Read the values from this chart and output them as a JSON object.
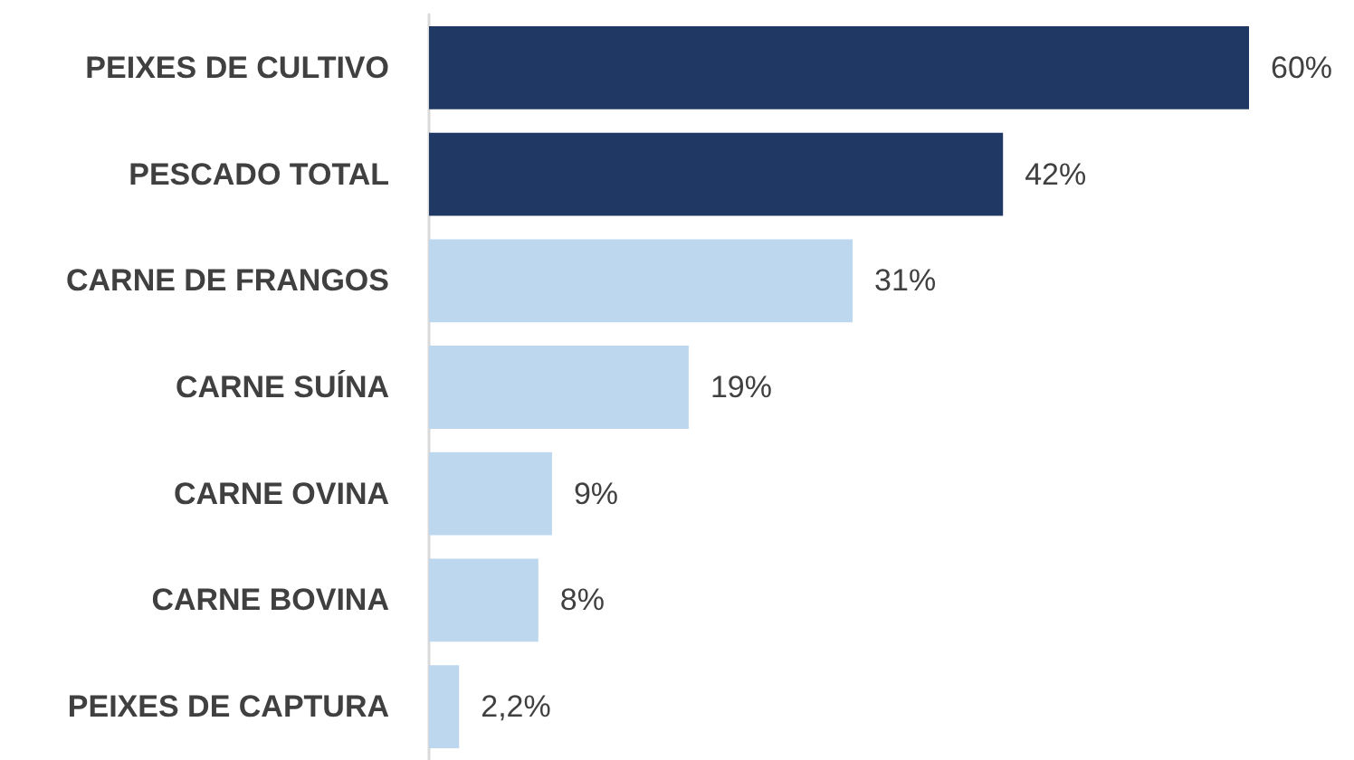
{
  "chart_data": {
    "type": "bar",
    "orientation": "horizontal",
    "categories": [
      "PEIXES DE CULTIVO",
      "PESCADO TOTAL",
      "CARNE DE FRANGOS",
      "CARNE SUÍNA",
      "CARNE OVINA",
      "CARNE BOVINA",
      "PEIXES DE CAPTURA"
    ],
    "values": [
      60,
      42,
      31,
      19,
      9,
      8,
      2.2
    ],
    "value_labels": [
      "60%",
      "42%",
      "31%",
      "19%",
      "9%",
      "8%",
      "2,2%"
    ],
    "colors": [
      "#203864",
      "#203864",
      "#bdd7ee",
      "#bdd7ee",
      "#bdd7ee",
      "#bdd7ee",
      "#bdd7ee"
    ]
  }
}
